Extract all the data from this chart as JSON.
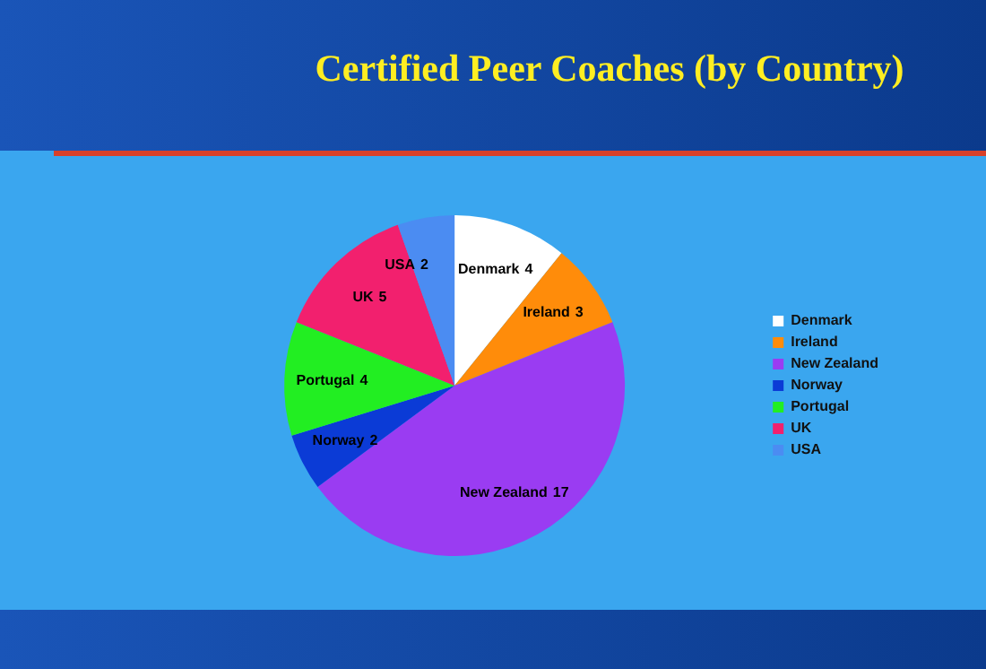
{
  "chart_data": {
    "type": "pie",
    "title": "Certified Peer Coaches (by Country)",
    "categories": [
      "Denmark",
      "Ireland",
      "New Zealand",
      "Norway",
      "Portugal",
      "UK",
      "USA"
    ],
    "values": [
      4,
      3,
      17,
      2,
      4,
      5,
      2
    ],
    "colors": [
      "#ffffff",
      "#ff8c0a",
      "#9a3cf2",
      "#0b3bd6",
      "#22ee22",
      "#f2206e",
      "#4b8cf2"
    ],
    "data_labels": true,
    "legend": "right"
  }
}
